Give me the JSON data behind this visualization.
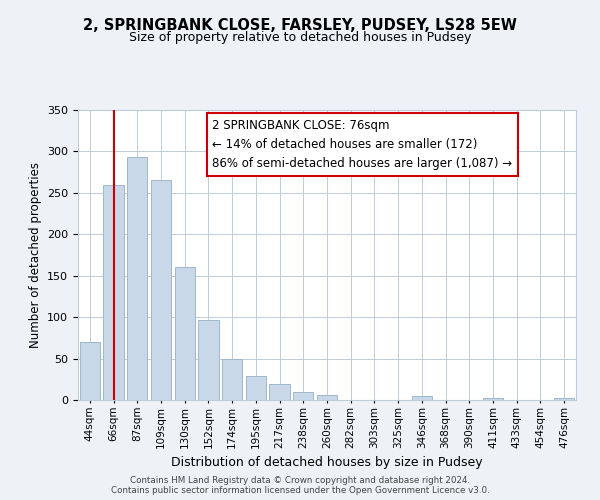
{
  "title1": "2, SPRINGBANK CLOSE, FARSLEY, PUDSEY, LS28 5EW",
  "title2": "Size of property relative to detached houses in Pudsey",
  "xlabel": "Distribution of detached houses by size in Pudsey",
  "ylabel": "Number of detached properties",
  "bar_labels": [
    "44sqm",
    "66sqm",
    "87sqm",
    "109sqm",
    "130sqm",
    "152sqm",
    "174sqm",
    "195sqm",
    "217sqm",
    "238sqm",
    "260sqm",
    "282sqm",
    "303sqm",
    "325sqm",
    "346sqm",
    "368sqm",
    "390sqm",
    "411sqm",
    "433sqm",
    "454sqm",
    "476sqm"
  ],
  "bar_values": [
    70,
    260,
    293,
    265,
    160,
    97,
    49,
    29,
    19,
    10,
    6,
    0,
    0,
    0,
    5,
    0,
    0,
    3,
    0,
    0,
    3
  ],
  "bar_color": "#c8d8e8",
  "bar_edge_color": "#a0b8cc",
  "vline_x": 1,
  "vline_color": "#cc0000",
  "ylim": [
    0,
    350
  ],
  "yticks": [
    0,
    50,
    100,
    150,
    200,
    250,
    300,
    350
  ],
  "annotation_line1": "2 SPRINGBANK CLOSE: 76sqm",
  "annotation_line2": "← 14% of detached houses are smaller (172)",
  "annotation_line3": "86% of semi-detached houses are larger (1,087) →",
  "footer1": "Contains HM Land Registry data © Crown copyright and database right 2024.",
  "footer2": "Contains public sector information licensed under the Open Government Licence v3.0.",
  "bg_color": "#eef2f7",
  "plot_bg_color": "#ffffff",
  "grid_color": "#c0ccd8"
}
